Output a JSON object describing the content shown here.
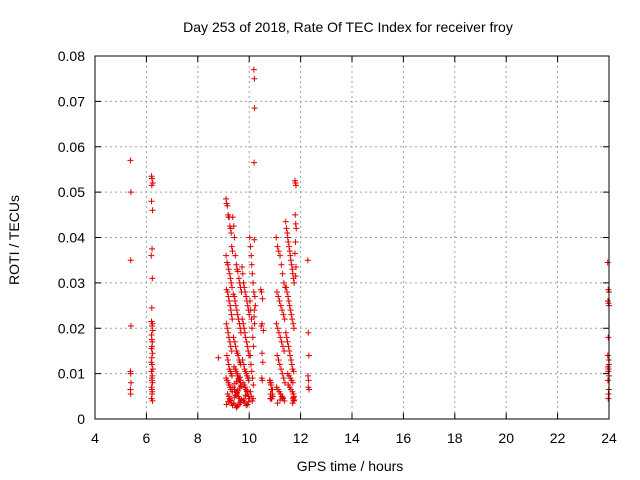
{
  "chart_data": {
    "type": "scatter",
    "title": "Day 253 of 2018, Rate Of TEC Index for receiver froy",
    "xlabel": "GPS time / hours",
    "ylabel": "ROTI / TECUs",
    "xlim": [
      4,
      24
    ],
    "ylim": [
      0,
      0.08
    ],
    "xticks": [
      "4",
      "6",
      "8",
      "10",
      "12",
      "14",
      "16",
      "18",
      "20",
      "22",
      "24"
    ],
    "yticks": [
      "0",
      "0.01",
      "0.02",
      "0.03",
      "0.04",
      "0.05",
      "0.06",
      "0.07",
      "0.08"
    ],
    "grid": true,
    "marker": "plus",
    "color": "#e00000",
    "series": [
      {
        "x": [
          5.38,
          5.4,
          5.39,
          5.4,
          5.38,
          5.39,
          5.4,
          5.38,
          5.39,
          6.2,
          6.22,
          6.25,
          6.21,
          6.2,
          6.24,
          6.22,
          6.19,
          6.23,
          6.21,
          6.2,
          6.24,
          6.22,
          6.25,
          6.2,
          6.21,
          6.23,
          6.22,
          6.2,
          6.24,
          6.21,
          6.19,
          6.22,
          6.25,
          6.2,
          6.23,
          6.21,
          6.22,
          6.24,
          6.2,
          6.21,
          6.23,
          6.22,
          6.2,
          6.24,
          8.8,
          9.1,
          9.12,
          9.15,
          9.18,
          9.2,
          9.22,
          9.25,
          9.28,
          9.3,
          9.32,
          9.35,
          9.1,
          9.14,
          9.17,
          9.2,
          9.24,
          9.27,
          9.3,
          9.33,
          9.12,
          9.16,
          9.19,
          9.22,
          9.26,
          9.29,
          9.31,
          9.34,
          9.11,
          9.15,
          9.18,
          9.21,
          9.25,
          9.28,
          9.32,
          9.13,
          9.17,
          9.2,
          9.23,
          9.27,
          9.3,
          9.33,
          9.1,
          9.14,
          9.19,
          9.22,
          9.26,
          9.29,
          9.34,
          9.16,
          9.21,
          9.24,
          9.28,
          9.31,
          9.35,
          9.12,
          9.18,
          9.25,
          9.36,
          9.4,
          9.43,
          9.46,
          9.5,
          9.53,
          9.56,
          9.6,
          9.63,
          9.66,
          9.7,
          9.38,
          9.42,
          9.45,
          9.48,
          9.52,
          9.55,
          9.58,
          9.62,
          9.65,
          9.68,
          9.39,
          9.44,
          9.47,
          9.51,
          9.54,
          9.57,
          9.61,
          9.64,
          9.67,
          9.41,
          9.46,
          9.49,
          9.53,
          9.56,
          9.59,
          9.63,
          9.66,
          9.69,
          9.37,
          9.43,
          9.48,
          9.52,
          9.58,
          9.62,
          9.67,
          9.4,
          9.45,
          9.5,
          9.55,
          9.6,
          9.65,
          9.7,
          9.42,
          9.47,
          9.53,
          9.57,
          9.63,
          9.68,
          9.44,
          9.51,
          9.59,
          9.64,
          9.72,
          9.75,
          9.78,
          9.81,
          9.84,
          9.88,
          9.91,
          9.94,
          9.97,
          10.0,
          9.73,
          9.77,
          9.8,
          9.83,
          9.86,
          9.9,
          9.93,
          9.96,
          9.99,
          9.74,
          9.79,
          9.82,
          9.85,
          9.89,
          9.92,
          9.95,
          9.98,
          9.76,
          9.81,
          9.84,
          9.87,
          9.91,
          9.94,
          9.97,
          10.01,
          9.78,
          9.83,
          9.88,
          9.93,
          9.98,
          9.8,
          9.86,
          9.92,
          10.02,
          10.05,
          10.08,
          10.1,
          10.12,
          10.15,
          10.18,
          10.03,
          10.06,
          10.09,
          10.11,
          10.14,
          10.17,
          10.04,
          10.07,
          10.1,
          10.13,
          10.16,
          10.05,
          10.08,
          10.12,
          10.15,
          10.18,
          10.2,
          10.21,
          10.19,
          10.2,
          10.22,
          10.24,
          10.2,
          10.19,
          10.21,
          10.45,
          10.48,
          10.52,
          10.5,
          10.47,
          10.55,
          10.5,
          10.53,
          10.49,
          10.51,
          10.8,
          10.82,
          10.85,
          10.88,
          10.9,
          10.92,
          10.84,
          10.87,
          10.81,
          10.89,
          10.86,
          10.83,
          10.91,
          10.85,
          10.88,
          10.84,
          10.9,
          10.82,
          11.05,
          11.1,
          11.15,
          11.2,
          11.25,
          11.3,
          11.35,
          11.4,
          11.08,
          11.13,
          11.18,
          11.23,
          11.28,
          11.33,
          11.38,
          11.06,
          11.11,
          11.16,
          11.21,
          11.26,
          11.31,
          11.36,
          11.09,
          11.14,
          11.19,
          11.24,
          11.29,
          11.34,
          11.39,
          11.07,
          11.12,
          11.17,
          11.22,
          11.27,
          11.32,
          11.37,
          11.1,
          11.2,
          11.3,
          11.42,
          11.45,
          11.48,
          11.5,
          11.52,
          11.55,
          11.58,
          11.6,
          11.62,
          11.65,
          11.68,
          11.7,
          11.72,
          11.75,
          11.44,
          11.47,
          11.51,
          11.54,
          11.57,
          11.61,
          11.64,
          11.67,
          11.71,
          11.74,
          11.43,
          11.46,
          11.49,
          11.53,
          11.56,
          11.59,
          11.63,
          11.66,
          11.69,
          11.73,
          11.5,
          11.55,
          11.6,
          11.65,
          11.7,
          11.52,
          11.58,
          11.62,
          11.68,
          11.72,
          11.74,
          11.71,
          11.73,
          11.69,
          11.75,
          11.72,
          11.78,
          11.8,
          11.82,
          11.79,
          11.81,
          11.83,
          11.8,
          11.78,
          11.82,
          11.81,
          12.28,
          12.3,
          12.32,
          12.29,
          12.31,
          12.3,
          12.33,
          23.95,
          23.97,
          24.0,
          23.96,
          23.98,
          24.0,
          23.97,
          23.95,
          23.99,
          24.0,
          23.96,
          23.98,
          23.97,
          24.0,
          23.96,
          23.99,
          23.98,
          23.97
        ],
        "y": [
          0.057,
          0.05,
          0.035,
          0.0205,
          0.0105,
          0.01,
          0.008,
          0.0065,
          0.0055,
          0.0535,
          0.053,
          0.052,
          0.0515,
          0.048,
          0.046,
          0.0375,
          0.036,
          0.031,
          0.0245,
          0.0215,
          0.021,
          0.0205,
          0.0195,
          0.0185,
          0.0175,
          0.017,
          0.016,
          0.0155,
          0.0145,
          0.0135,
          0.0125,
          0.012,
          0.011,
          0.0105,
          0.0095,
          0.009,
          0.0085,
          0.008,
          0.007,
          0.0065,
          0.006,
          0.0055,
          0.0045,
          0.004,
          0.0135,
          0.0485,
          0.0475,
          0.047,
          0.045,
          0.0445,
          0.0445,
          0.0425,
          0.042,
          0.041,
          0.038,
          0.037,
          0.036,
          0.0345,
          0.034,
          0.033,
          0.032,
          0.031,
          0.03,
          0.029,
          0.0285,
          0.028,
          0.027,
          0.026,
          0.025,
          0.024,
          0.023,
          0.022,
          0.021,
          0.02,
          0.019,
          0.018,
          0.017,
          0.016,
          0.015,
          0.014,
          0.013,
          0.012,
          0.011,
          0.0105,
          0.01,
          0.0095,
          0.009,
          0.0085,
          0.008,
          0.0075,
          0.007,
          0.0065,
          0.006,
          0.0055,
          0.005,
          0.0045,
          0.004,
          0.0035,
          0.003,
          0.0032,
          0.0038,
          0.0042,
          0.0445,
          0.0425,
          0.04,
          0.036,
          0.034,
          0.033,
          0.0325,
          0.031,
          0.03,
          0.029,
          0.028,
          0.0275,
          0.027,
          0.026,
          0.025,
          0.024,
          0.023,
          0.022,
          0.021,
          0.02,
          0.019,
          0.018,
          0.017,
          0.016,
          0.015,
          0.0145,
          0.014,
          0.013,
          0.0125,
          0.012,
          0.0115,
          0.011,
          0.0105,
          0.01,
          0.0095,
          0.009,
          0.0085,
          0.008,
          0.0075,
          0.007,
          0.0065,
          0.006,
          0.0055,
          0.005,
          0.0045,
          0.004,
          0.0035,
          0.003,
          0.0025,
          0.0028,
          0.0032,
          0.0036,
          0.0042,
          0.0048,
          0.0052,
          0.0058,
          0.0062,
          0.0068,
          0.0072,
          0.0078,
          0.0082,
          0.0088,
          0.0092,
          0.0335,
          0.032,
          0.03,
          0.029,
          0.028,
          0.027,
          0.026,
          0.025,
          0.024,
          0.023,
          0.022,
          0.021,
          0.02,
          0.019,
          0.018,
          0.017,
          0.016,
          0.015,
          0.014,
          0.013,
          0.012,
          0.011,
          0.0105,
          0.01,
          0.0095,
          0.009,
          0.0085,
          0.008,
          0.0075,
          0.007,
          0.0065,
          0.006,
          0.0055,
          0.005,
          0.0045,
          0.004,
          0.0035,
          0.003,
          0.0032,
          0.0038,
          0.0044,
          0.0052,
          0.0062,
          0.04,
          0.038,
          0.036,
          0.034,
          0.032,
          0.03,
          0.028,
          0.026,
          0.024,
          0.022,
          0.02,
          0.018,
          0.016,
          0.014,
          0.012,
          0.0105,
          0.009,
          0.0075,
          0.006,
          0.005,
          0.004,
          0.0045,
          0.077,
          0.075,
          0.0685,
          0.0565,
          0.0395,
          0.027,
          0.025,
          0.024,
          0.0225,
          0.021,
          0.0285,
          0.028,
          0.0265,
          0.021,
          0.0205,
          0.0195,
          0.0145,
          0.0125,
          0.009,
          0.0085,
          0.0085,
          0.008,
          0.0075,
          0.0065,
          0.0055,
          0.005,
          0.0045,
          0.0065,
          0.0085,
          0.005,
          0.0045,
          0.0055,
          0.0065,
          0.0075,
          0.0045,
          0.008,
          0.0055,
          0.0045,
          0.04,
          0.038,
          0.037,
          0.036,
          0.034,
          0.032,
          0.03,
          0.029,
          0.028,
          0.027,
          0.026,
          0.025,
          0.024,
          0.023,
          0.022,
          0.021,
          0.02,
          0.019,
          0.018,
          0.017,
          0.016,
          0.015,
          0.014,
          0.013,
          0.012,
          0.011,
          0.01,
          0.009,
          0.008,
          0.007,
          0.0065,
          0.006,
          0.0055,
          0.005,
          0.0045,
          0.004,
          0.0035,
          0.0042,
          0.0048,
          0.0435,
          0.042,
          0.041,
          0.04,
          0.039,
          0.038,
          0.037,
          0.036,
          0.035,
          0.034,
          0.033,
          0.032,
          0.031,
          0.03,
          0.029,
          0.028,
          0.027,
          0.026,
          0.025,
          0.024,
          0.023,
          0.022,
          0.021,
          0.02,
          0.019,
          0.018,
          0.017,
          0.016,
          0.015,
          0.014,
          0.013,
          0.012,
          0.011,
          0.0105,
          0.01,
          0.0095,
          0.009,
          0.0085,
          0.008,
          0.0075,
          0.007,
          0.0065,
          0.006,
          0.0055,
          0.005,
          0.0045,
          0.004,
          0.0035,
          0.0042,
          0.0048,
          0.0525,
          0.052,
          0.0515,
          0.045,
          0.043,
          0.042,
          0.039,
          0.0365,
          0.0335,
          0.0315,
          0.035,
          0.019,
          0.014,
          0.0095,
          0.0085,
          0.007,
          0.0065,
          0.0345,
          0.0285,
          0.028,
          0.026,
          0.0255,
          0.025,
          0.018,
          0.014,
          0.013,
          0.012,
          0.0115,
          0.011,
          0.0105,
          0.0095,
          0.0085,
          0.0065,
          0.0055,
          0.0045
        ]
      }
    ]
  }
}
